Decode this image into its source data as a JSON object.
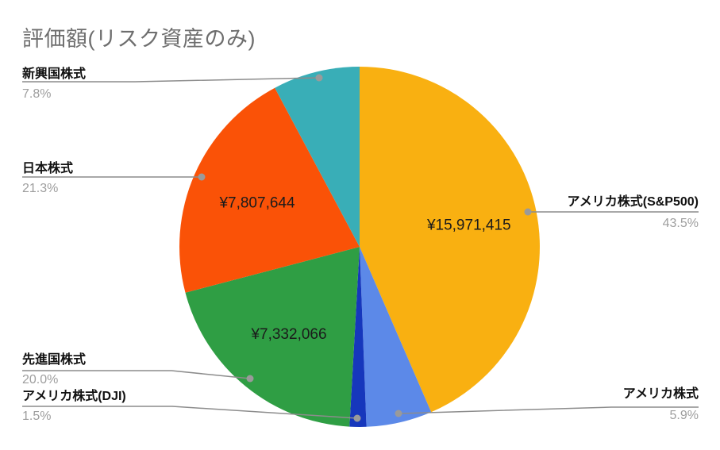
{
  "chart_data": {
    "type": "pie",
    "title": "評価額(リスク資産のみ)",
    "legend_position": "labeled-callouts",
    "values_format": "JPY",
    "slices": [
      {
        "label": "アメリカ株式(S&P500)",
        "pct": 43.5,
        "pct_label": "43.5%",
        "value": 15971415,
        "value_label": "¥15,971,415",
        "color": "#F9B011"
      },
      {
        "label": "アメリカ株式",
        "pct": 5.9,
        "pct_label": "5.9%",
        "value_label": "",
        "color": "#5C89E8"
      },
      {
        "label": "アメリカ株式(DJI)",
        "pct": 1.5,
        "pct_label": "1.5%",
        "value_label": "",
        "color": "#1637BC"
      },
      {
        "label": "先進国株式",
        "pct": 20.0,
        "pct_label": "20.0%",
        "value": 7332066,
        "value_label": "¥7,332,066",
        "color": "#2F9E44"
      },
      {
        "label": "日本株式",
        "pct": 21.3,
        "pct_label": "21.3%",
        "value": 7807644,
        "value_label": "¥7,807,644",
        "color": "#FA5207"
      },
      {
        "label": "新興国株式",
        "pct": 7.8,
        "pct_label": "7.8%",
        "value_label": "",
        "color": "#39AEB7"
      }
    ]
  }
}
